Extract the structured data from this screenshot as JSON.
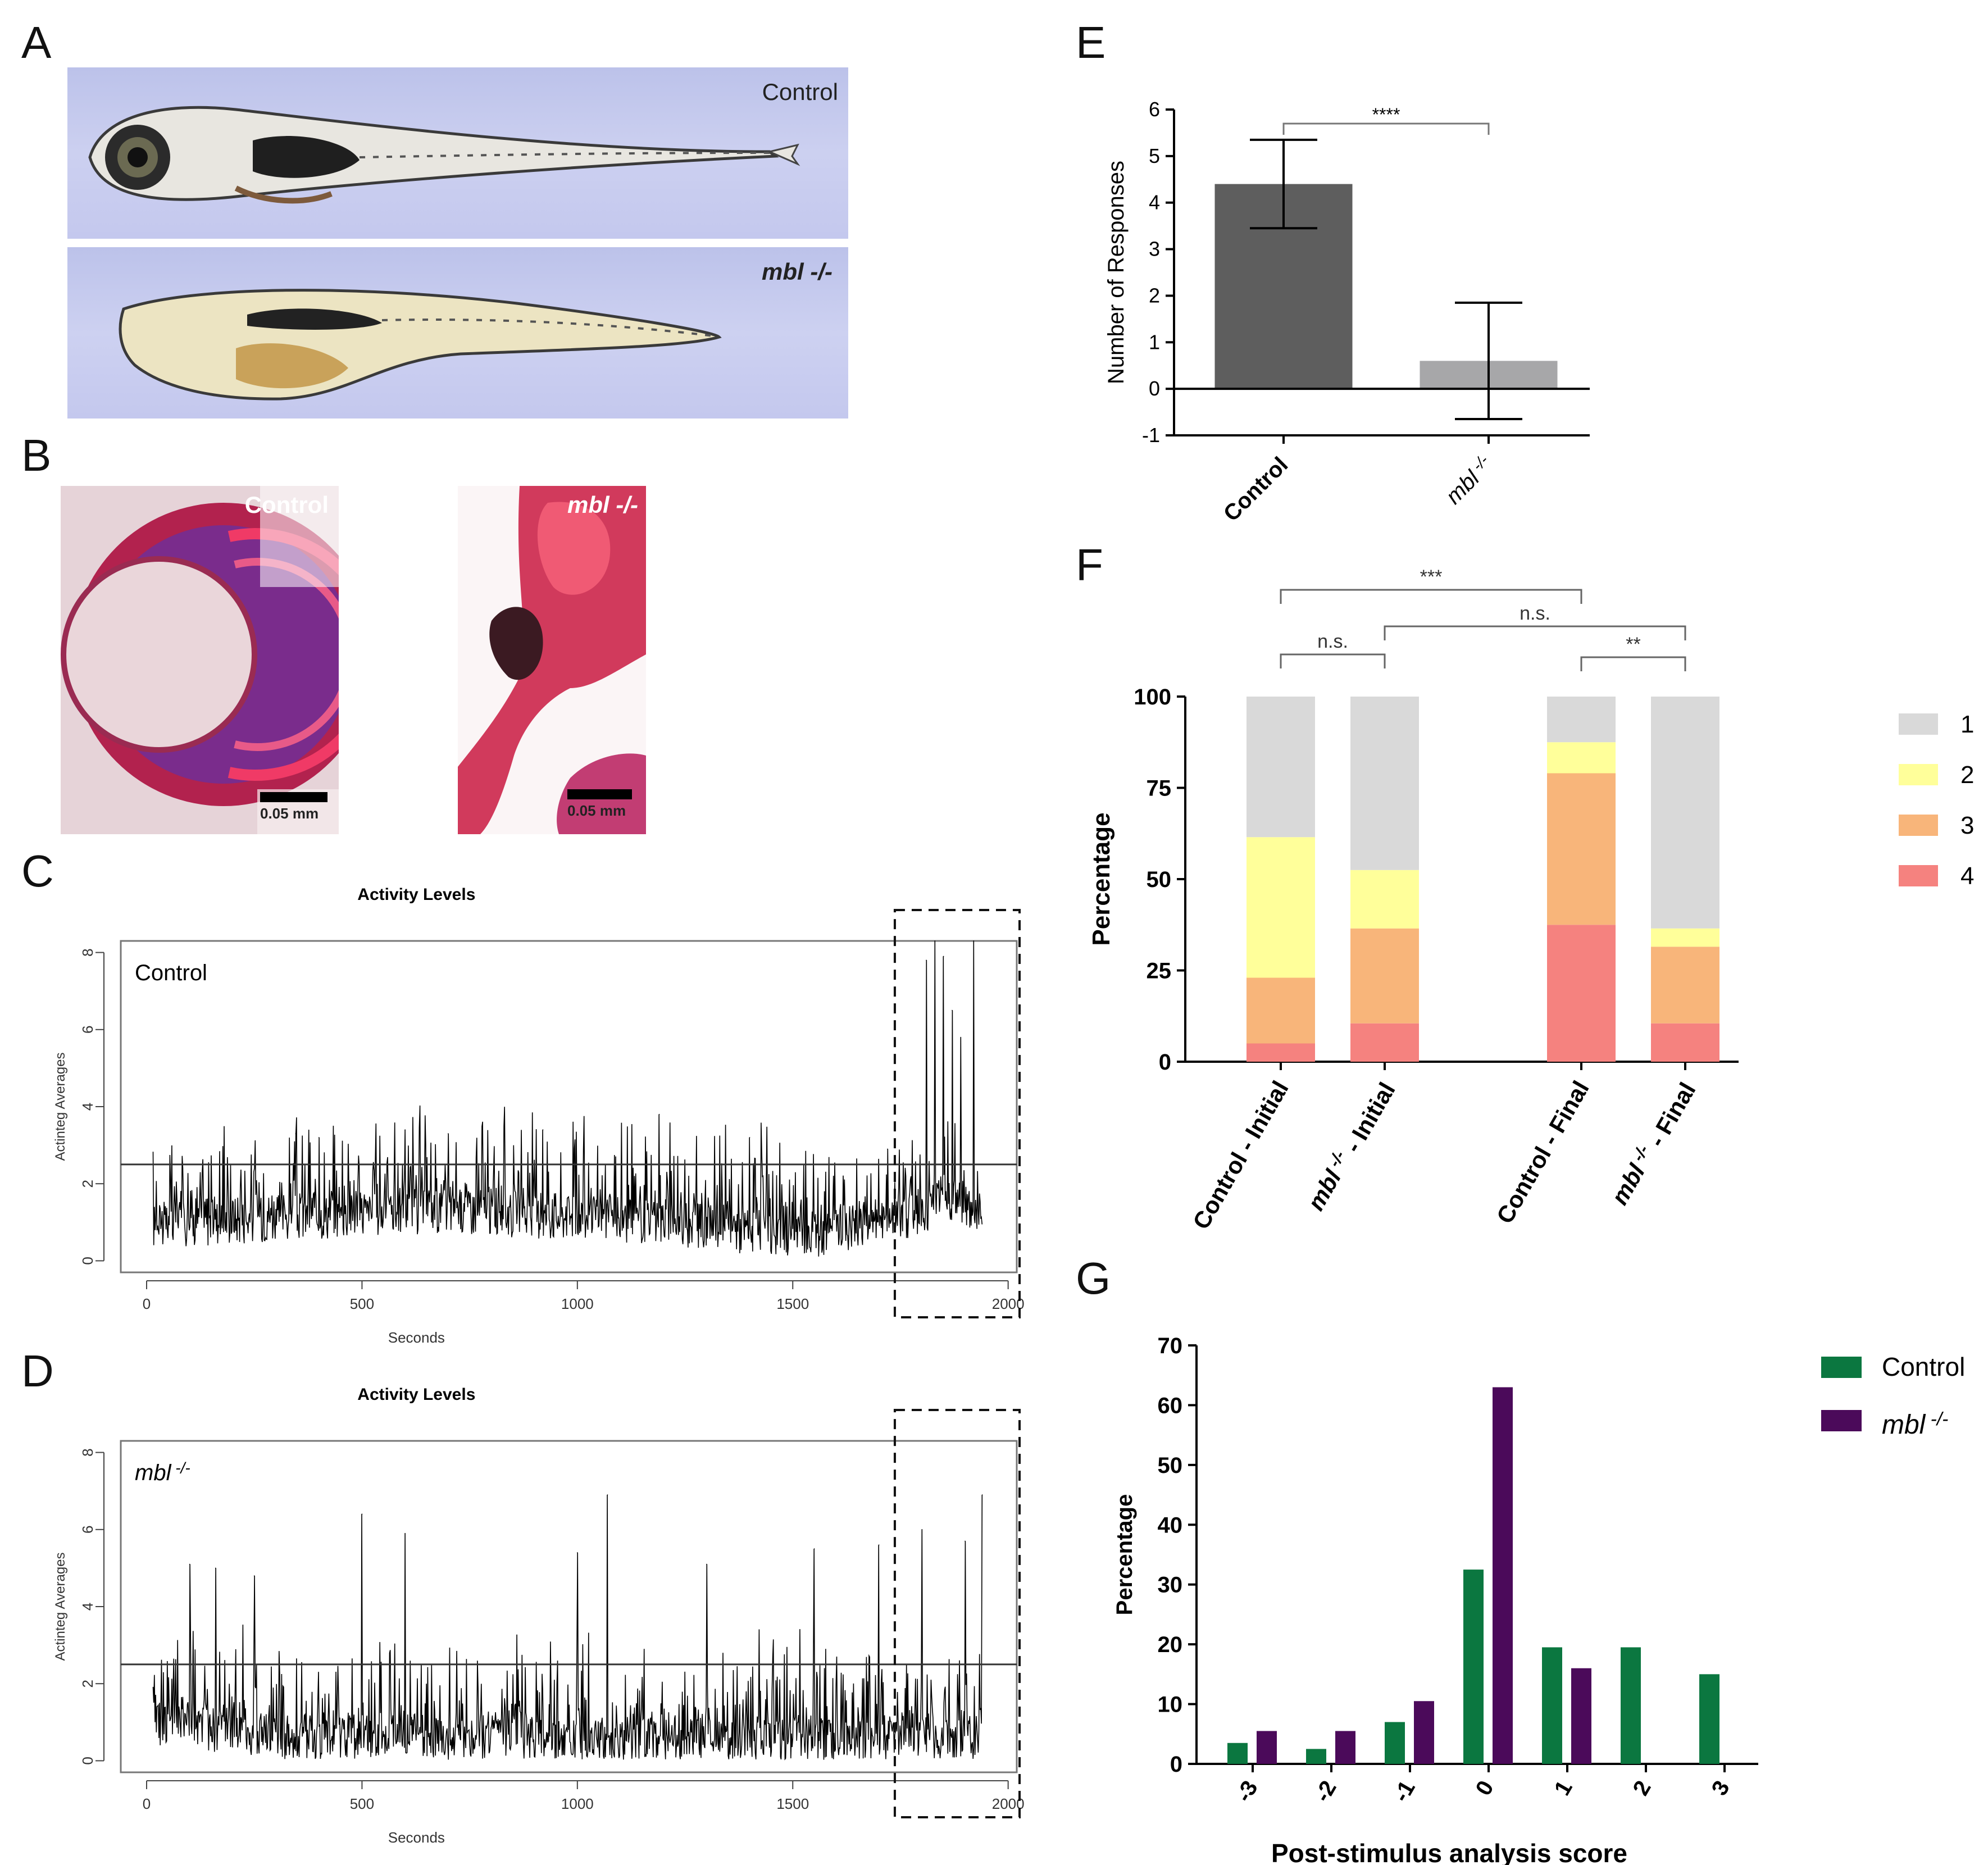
{
  "panels": {
    "A": {
      "letter": "A",
      "label_control": "Control",
      "label_mutant": "mbl -/-"
    },
    "B": {
      "letter": "B",
      "label_control": "Control",
      "label_mutant": "mbl -/-",
      "scale_bar_label": "0.05 mm"
    },
    "C": {
      "letter": "C"
    },
    "D": {
      "letter": "D"
    },
    "E": {
      "letter": "E"
    },
    "F": {
      "letter": "F"
    },
    "G": {
      "letter": "G"
    }
  },
  "colors": {
    "bar_dark": "#5e5e5e",
    "bar_light": "#a7a7a9",
    "stack_1": "#d9d9d9",
    "stack_2": "#ffff9a",
    "stack_3": "#f8b57a",
    "stack_4": "#f5827f",
    "green": "#0b7740",
    "purple": "#4b0a5a"
  },
  "chart_data": [
    {
      "id": "C",
      "type": "line",
      "title": "Activity Levels",
      "inset_label": "Control",
      "xlabel": "Seconds",
      "ylabel": "Actinteg Averages",
      "xlim": [
        -60,
        2020
      ],
      "ylim": [
        -0.3,
        8.3
      ],
      "xticks": [
        0,
        500,
        1000,
        1500,
        2000
      ],
      "yticks": [
        0,
        2,
        4,
        6,
        8
      ],
      "threshold": 2.5,
      "highlight_range": [
        1750,
        2020
      ],
      "baseline_profile": [
        [
          0,
          0.9
        ],
        [
          300,
          1.1
        ],
        [
          700,
          1.3
        ],
        [
          1000,
          1.1
        ],
        [
          1300,
          0.9
        ],
        [
          1500,
          0.6
        ],
        [
          1700,
          0.9
        ],
        [
          1880,
          1.6
        ],
        [
          1940,
          1.0
        ]
      ],
      "peaks": [
        [
          346,
          3.3
        ],
        [
          400,
          3.2
        ],
        [
          600,
          3.4
        ],
        [
          700,
          3.3
        ],
        [
          780,
          3.6
        ],
        [
          830,
          3.5
        ],
        [
          920,
          3.4
        ],
        [
          990,
          3.6
        ],
        [
          1190,
          3.8
        ],
        [
          1400,
          3.2
        ],
        [
          1720,
          2.9
        ],
        [
          1810,
          7.8
        ],
        [
          1830,
          8.3
        ],
        [
          1850,
          7.9
        ],
        [
          1870,
          6.5
        ],
        [
          1890,
          5.8
        ],
        [
          1920,
          8.3
        ]
      ],
      "x_range": [
        15,
        1940
      ]
    },
    {
      "id": "D",
      "type": "line",
      "title": "Activity Levels",
      "inset_label": "mbl -/-",
      "xlabel": "Seconds",
      "ylabel": "Actinteg Averages",
      "xlim": [
        -60,
        2020
      ],
      "ylim": [
        -0.3,
        8.3
      ],
      "xticks": [
        0,
        500,
        1000,
        1500,
        2000
      ],
      "yticks": [
        0,
        2,
        4,
        6,
        8
      ],
      "threshold": 2.5,
      "highlight_range": [
        1750,
        2020
      ],
      "baseline_profile": [
        [
          0,
          1.0
        ],
        [
          300,
          0.6
        ],
        [
          700,
          0.6
        ],
        [
          1000,
          0.5
        ],
        [
          1300,
          0.5
        ],
        [
          1600,
          0.5
        ],
        [
          1800,
          0.7
        ],
        [
          1940,
          0.3
        ]
      ],
      "peaks": [
        [
          100,
          5.1
        ],
        [
          160,
          5.0
        ],
        [
          250,
          4.8
        ],
        [
          500,
          6.4
        ],
        [
          600,
          5.9
        ],
        [
          1000,
          5.4
        ],
        [
          1070,
          6.9
        ],
        [
          1300,
          5.1
        ],
        [
          1550,
          5.5
        ],
        [
          1700,
          5.6
        ],
        [
          1800,
          6.0
        ],
        [
          1900,
          5.7
        ],
        [
          1940,
          6.9
        ]
      ],
      "x_range": [
        15,
        1940
      ]
    },
    {
      "id": "E",
      "type": "bar",
      "categories": [
        "Control",
        "mbl -/-"
      ],
      "values": [
        4.4,
        0.6
      ],
      "errors": [
        0.95,
        1.25
      ],
      "ylabel": "Number of Responses",
      "ylim": [
        -1,
        6
      ],
      "yticks": [
        -1,
        0,
        1,
        2,
        3,
        4,
        5,
        6
      ],
      "significance": "****"
    },
    {
      "id": "F",
      "type": "bar",
      "stacked": true,
      "categories": [
        "Control - Initial",
        "mbl -/- - Initial",
        "Control - Final",
        "mbl -/- - Final"
      ],
      "series": [
        {
          "name": "4",
          "values": [
            5,
            10.5,
            37.5,
            10.5
          ]
        },
        {
          "name": "3",
          "values": [
            18,
            26,
            41.5,
            21
          ]
        },
        {
          "name": "2",
          "values": [
            38.5,
            16,
            8.5,
            5
          ]
        },
        {
          "name": "1",
          "values": [
            38.5,
            47.5,
            12.5,
            63.5
          ]
        }
      ],
      "legend_order": [
        "1",
        "2",
        "3",
        "4"
      ],
      "ylabel": "Percentage",
      "ylim": [
        0,
        100
      ],
      "yticks": [
        0,
        25,
        50,
        75,
        100
      ],
      "brackets": [
        {
          "from": 0,
          "to": 1,
          "label": "n.s."
        },
        {
          "from": 1,
          "to": 3,
          "label": "n.s."
        },
        {
          "from": 2,
          "to": 3,
          "label": "**"
        },
        {
          "from": 0,
          "to": 2,
          "label": "***"
        }
      ]
    },
    {
      "id": "G",
      "type": "bar",
      "categories": [
        "-3",
        "-2",
        "-1",
        "0",
        "1",
        "2",
        "3"
      ],
      "series": [
        {
          "name": "Control",
          "values": [
            3.5,
            2.5,
            7,
            32.5,
            19.5,
            19.5,
            15
          ]
        },
        {
          "name": "mbl -/-",
          "values": [
            5.5,
            5.5,
            10.5,
            63,
            16,
            0,
            0
          ]
        }
      ],
      "xlabel": "Post-stimulus analysis score",
      "ylabel": "Percentage",
      "ylim": [
        0,
        70
      ],
      "yticks": [
        0,
        10,
        20,
        30,
        40,
        50,
        60,
        70
      ]
    }
  ]
}
